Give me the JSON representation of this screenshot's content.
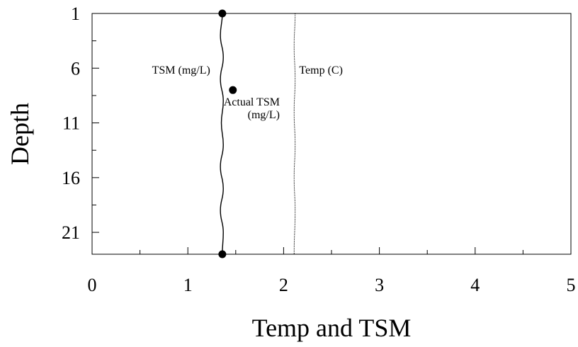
{
  "chart_data": {
    "type": "line",
    "title": "",
    "xlabel": "Temp and TSM",
    "ylabel": "Depth",
    "xlim": [
      0,
      5
    ],
    "ylim": [
      1,
      23
    ],
    "y_inverted": true,
    "x_ticks": [
      0,
      1,
      2,
      3,
      4,
      5
    ],
    "y_ticks": [
      1,
      6,
      11,
      16,
      21
    ],
    "x_tick_labels": [
      "0",
      "1",
      "2",
      "3",
      "4",
      "5"
    ],
    "y_tick_labels": [
      "1",
      "6",
      "11",
      "16",
      "21"
    ],
    "grid": false,
    "series": [
      {
        "name": "TSM (mg/L)",
        "style": "solid",
        "color": "#000000",
        "points": [
          {
            "x": 1.36,
            "y": 1
          },
          {
            "x": 1.34,
            "y": 3
          },
          {
            "x": 1.37,
            "y": 5
          },
          {
            "x": 1.34,
            "y": 7
          },
          {
            "x": 1.37,
            "y": 9
          },
          {
            "x": 1.35,
            "y": 11
          },
          {
            "x": 1.37,
            "y": 13
          },
          {
            "x": 1.34,
            "y": 15
          },
          {
            "x": 1.37,
            "y": 17
          },
          {
            "x": 1.34,
            "y": 19
          },
          {
            "x": 1.37,
            "y": 21
          },
          {
            "x": 1.36,
            "y": 23
          }
        ]
      },
      {
        "name": "Temp (C)",
        "style": "dotted",
        "color": "#000000",
        "points": [
          {
            "x": 2.12,
            "y": 1
          },
          {
            "x": 2.11,
            "y": 4
          },
          {
            "x": 2.12,
            "y": 7
          },
          {
            "x": 2.11,
            "y": 10
          },
          {
            "x": 2.12,
            "y": 13
          },
          {
            "x": 2.11,
            "y": 16
          },
          {
            "x": 2.12,
            "y": 19
          },
          {
            "x": 2.11,
            "y": 23
          }
        ]
      },
      {
        "name": "Actual TSM (mg/L)",
        "style": "markers",
        "color": "#000000",
        "points": [
          {
            "x": 1.36,
            "y": 1
          },
          {
            "x": 1.47,
            "y": 8
          },
          {
            "x": 1.36,
            "y": 23
          }
        ]
      }
    ],
    "annotations": [
      {
        "text_lines": [
          "TSM (mg/L)"
        ],
        "x": 0.93,
        "y": 6.5,
        "anchor": "middle"
      },
      {
        "text_lines": [
          "Temp (C)"
        ],
        "x": 2.39,
        "y": 6.5,
        "anchor": "middle"
      },
      {
        "text_lines": [
          "Actual TSM",
          "(mg/L)"
        ],
        "x": 1.96,
        "y": 9.4,
        "anchor": "end"
      }
    ]
  }
}
